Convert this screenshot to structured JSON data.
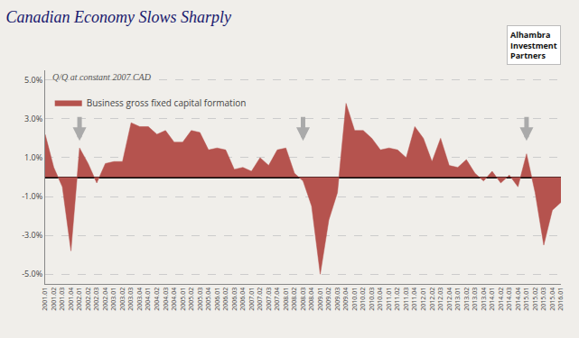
{
  "chart_data": {
    "type": "area",
    "title": "Canadian Economy Slows Sharply",
    "subtitle": "Q/Q at constant 2007 CAD",
    "annotations": [
      "Alhambra",
      "Investment",
      "Partners"
    ],
    "arrows": [
      "2002.01",
      "2008.03",
      "2015.01"
    ],
    "categories": [
      "2001.01",
      "2001.02",
      "2001.03",
      "2001.04",
      "2002.01",
      "2002.02",
      "2002.03",
      "2002.04",
      "2003.01",
      "2003.02",
      "2003.03",
      "2003.04",
      "2004.01",
      "2004.02",
      "2004.03",
      "2004.04",
      "2005.01",
      "2005.02",
      "2005.03",
      "2005.04",
      "2006.01",
      "2006.02",
      "2006.03",
      "2006.04",
      "2007.01",
      "2007.02",
      "2007.03",
      "2007.04",
      "2008.01",
      "2008.02",
      "2008.03",
      "2008.04",
      "2009.01",
      "2009.02",
      "2009.03",
      "2009.04",
      "2010.01",
      "2010.02",
      "2010.03",
      "2010.04",
      "2011.01",
      "2011.02",
      "2011.03",
      "2011.04",
      "2012.01",
      "2012.02",
      "2012.03",
      "2012.04",
      "2013.01",
      "2013.02",
      "2013.03",
      "2013.04",
      "2014.01",
      "2014.02",
      "2014.03",
      "2014.04",
      "2015.01",
      "2015.02",
      "2015.03",
      "2015.04",
      "2016.01"
    ],
    "series": [
      {
        "name": "Business gross fixed capital formation",
        "color": "#b5534e",
        "values": [
          0.022,
          0.005,
          -0.005,
          -0.038,
          0.015,
          0.007,
          -0.003,
          0.007,
          0.008,
          0.008,
          0.028,
          0.026,
          0.026,
          0.022,
          0.024,
          0.018,
          0.018,
          0.024,
          0.023,
          0.014,
          0.015,
          0.014,
          0.004,
          0.005,
          0.003,
          0.01,
          0.006,
          0.014,
          0.015,
          0.002,
          -0.002,
          -0.015,
          -0.05,
          -0.022,
          -0.008,
          0.038,
          0.024,
          0.024,
          0.02,
          0.014,
          0.015,
          0.014,
          0.01,
          0.026,
          0.02,
          0.008,
          0.02,
          0.006,
          0.005,
          0.009,
          0.002,
          -0.002,
          0.003,
          -0.003,
          0.001,
          -0.005,
          0.012,
          -0.008,
          -0.035,
          -0.017,
          -0.013
        ]
      }
    ],
    "ylim": [
      -0.055,
      0.055
    ],
    "yticks": [
      {
        "value": -0.05,
        "label": "-5.0%"
      },
      {
        "value": -0.03,
        "label": "-3.0%"
      },
      {
        "value": -0.01,
        "label": "-1.0%"
      },
      {
        "value": 0.01,
        "label": "1.0%"
      },
      {
        "value": 0.03,
        "label": "3.0%"
      },
      {
        "value": 0.05,
        "label": "5.0%"
      }
    ],
    "grid": true,
    "legend": "upper left"
  }
}
